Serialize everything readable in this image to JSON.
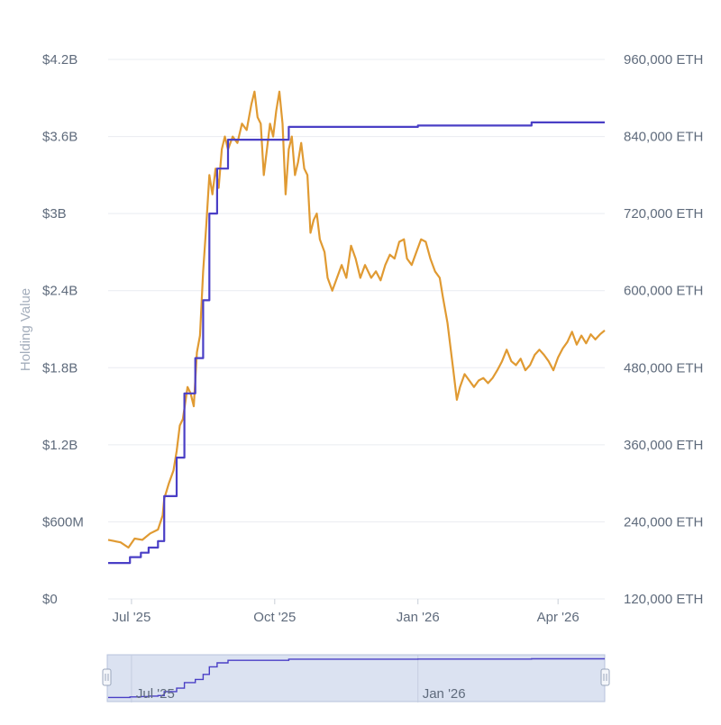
{
  "chart_data": {
    "type": "line",
    "ylabel": "Holding Value",
    "y_left_ticks": [
      "$0",
      "$600M",
      "$1.2B",
      "$1.8B",
      "$2.4B",
      "$3B",
      "$3.6B",
      "$4.2B"
    ],
    "y_left_values": [
      0,
      600,
      1200,
      1800,
      2400,
      3000,
      3600,
      4200
    ],
    "y_left_unit": "millions USD",
    "y_right_ticks": [
      "120,000 ETH",
      "240,000 ETH",
      "360,000 ETH",
      "480,000 ETH",
      "600,000 ETH",
      "720,000 ETH",
      "840,000 ETH",
      "960,000 ETH"
    ],
    "y_right_values": [
      120000,
      240000,
      360000,
      480000,
      600000,
      720000,
      840000,
      960000
    ],
    "x_ticks": [
      "Jul '25",
      "Oct '25",
      "Jan '26",
      "Apr '26"
    ],
    "x_tick_dates": [
      "2025-07-01",
      "2025-10-01",
      "2026-01-01",
      "2026-04-01"
    ],
    "x_range": [
      "2025-06-16",
      "2026-05-01"
    ],
    "ylim_left": [
      0,
      4200
    ],
    "ylim_right": [
      120000,
      960000
    ],
    "grid": true,
    "series": [
      {
        "color": "#e09a32",
        "axis": "left",
        "points": [
          [
            "2025-06-16",
            460
          ],
          [
            "2025-06-24",
            440
          ],
          [
            "2025-06-29",
            400
          ],
          [
            "2025-07-03",
            470
          ],
          [
            "2025-07-08",
            460
          ],
          [
            "2025-07-13",
            510
          ],
          [
            "2025-07-18",
            540
          ],
          [
            "2025-07-21",
            650
          ],
          [
            "2025-07-22",
            780
          ],
          [
            "2025-07-25",
            900
          ],
          [
            "2025-07-28",
            1000
          ],
          [
            "2025-07-30",
            1150
          ],
          [
            "2025-08-01",
            1350
          ],
          [
            "2025-08-03",
            1400
          ],
          [
            "2025-08-06",
            1650
          ],
          [
            "2025-08-08",
            1600
          ],
          [
            "2025-08-10",
            1500
          ],
          [
            "2025-08-12",
            1920
          ],
          [
            "2025-08-14",
            2050
          ],
          [
            "2025-08-16",
            2550
          ],
          [
            "2025-08-18",
            2900
          ],
          [
            "2025-08-20",
            3300
          ],
          [
            "2025-08-22",
            3150
          ],
          [
            "2025-08-24",
            3350
          ],
          [
            "2025-08-26",
            3200
          ],
          [
            "2025-08-28",
            3500
          ],
          [
            "2025-08-30",
            3600
          ],
          [
            "2025-09-01",
            3500
          ],
          [
            "2025-09-04",
            3600
          ],
          [
            "2025-09-07",
            3550
          ],
          [
            "2025-09-10",
            3700
          ],
          [
            "2025-09-13",
            3650
          ],
          [
            "2025-09-16",
            3850
          ],
          [
            "2025-09-18",
            3950
          ],
          [
            "2025-09-20",
            3750
          ],
          [
            "2025-09-22",
            3700
          ],
          [
            "2025-09-24",
            3300
          ],
          [
            "2025-09-26",
            3500
          ],
          [
            "2025-09-28",
            3700
          ],
          [
            "2025-09-30",
            3600
          ],
          [
            "2025-10-02",
            3800
          ],
          [
            "2025-10-04",
            3950
          ],
          [
            "2025-10-06",
            3700
          ],
          [
            "2025-10-08",
            3150
          ],
          [
            "2025-10-10",
            3500
          ],
          [
            "2025-10-12",
            3600
          ],
          [
            "2025-10-14",
            3300
          ],
          [
            "2025-10-16",
            3400
          ],
          [
            "2025-10-18",
            3550
          ],
          [
            "2025-10-20",
            3350
          ],
          [
            "2025-10-22",
            3300
          ],
          [
            "2025-10-24",
            2850
          ],
          [
            "2025-10-26",
            2950
          ],
          [
            "2025-10-28",
            3000
          ],
          [
            "2025-10-30",
            2800
          ],
          [
            "2025-11-02",
            2700
          ],
          [
            "2025-11-04",
            2500
          ],
          [
            "2025-11-07",
            2400
          ],
          [
            "2025-11-10",
            2500
          ],
          [
            "2025-11-13",
            2600
          ],
          [
            "2025-11-16",
            2500
          ],
          [
            "2025-11-19",
            2750
          ],
          [
            "2025-11-22",
            2650
          ],
          [
            "2025-11-25",
            2500
          ],
          [
            "2025-11-28",
            2600
          ],
          [
            "2025-12-02",
            2500
          ],
          [
            "2025-12-05",
            2550
          ],
          [
            "2025-12-08",
            2480
          ],
          [
            "2025-12-11",
            2600
          ],
          [
            "2025-12-14",
            2680
          ],
          [
            "2025-12-17",
            2650
          ],
          [
            "2025-12-20",
            2780
          ],
          [
            "2025-12-23",
            2800
          ],
          [
            "2025-12-25",
            2650
          ],
          [
            "2025-12-28",
            2600
          ],
          [
            "2025-12-31",
            2700
          ],
          [
            "2026-01-03",
            2800
          ],
          [
            "2026-01-06",
            2780
          ],
          [
            "2026-01-09",
            2650
          ],
          [
            "2026-01-12",
            2550
          ],
          [
            "2026-01-15",
            2500
          ],
          [
            "2026-01-17",
            2350
          ],
          [
            "2026-01-20",
            2150
          ],
          [
            "2026-01-22",
            1950
          ],
          [
            "2026-01-24",
            1750
          ],
          [
            "2026-01-26",
            1550
          ],
          [
            "2026-01-28",
            1650
          ],
          [
            "2026-01-31",
            1750
          ],
          [
            "2026-02-03",
            1700
          ],
          [
            "2026-02-06",
            1650
          ],
          [
            "2026-02-09",
            1700
          ],
          [
            "2026-02-12",
            1720
          ],
          [
            "2026-02-15",
            1680
          ],
          [
            "2026-02-18",
            1720
          ],
          [
            "2026-02-21",
            1780
          ],
          [
            "2026-02-24",
            1850
          ],
          [
            "2026-02-27",
            1940
          ],
          [
            "2026-03-02",
            1850
          ],
          [
            "2026-03-05",
            1820
          ],
          [
            "2026-03-08",
            1870
          ],
          [
            "2026-03-11",
            1780
          ],
          [
            "2026-03-14",
            1820
          ],
          [
            "2026-03-17",
            1900
          ],
          [
            "2026-03-20",
            1940
          ],
          [
            "2026-03-23",
            1900
          ],
          [
            "2026-03-26",
            1850
          ],
          [
            "2026-03-29",
            1780
          ],
          [
            "2026-04-01",
            1880
          ],
          [
            "2026-04-04",
            1950
          ],
          [
            "2026-04-07",
            2000
          ],
          [
            "2026-04-10",
            2080
          ],
          [
            "2026-04-13",
            1980
          ],
          [
            "2026-04-16",
            2050
          ],
          [
            "2026-04-19",
            1990
          ],
          [
            "2026-04-22",
            2060
          ],
          [
            "2026-04-25",
            2020
          ],
          [
            "2026-04-28",
            2060
          ],
          [
            "2026-05-01",
            2090
          ]
        ]
      },
      {
        "color": "#4a3fc6",
        "axis": "right",
        "points": [
          [
            "2025-06-16",
            176000
          ],
          [
            "2025-06-30",
            176000
          ],
          [
            "2025-06-30",
            185000
          ],
          [
            "2025-07-07",
            185000
          ],
          [
            "2025-07-07",
            192000
          ],
          [
            "2025-07-12",
            192000
          ],
          [
            "2025-07-12",
            200000
          ],
          [
            "2025-07-18",
            200000
          ],
          [
            "2025-07-18",
            210000
          ],
          [
            "2025-07-22",
            210000
          ],
          [
            "2025-07-22",
            280000
          ],
          [
            "2025-07-30",
            280000
          ],
          [
            "2025-07-30",
            340000
          ],
          [
            "2025-08-04",
            340000
          ],
          [
            "2025-08-04",
            440000
          ],
          [
            "2025-08-11",
            440000
          ],
          [
            "2025-08-11",
            495000
          ],
          [
            "2025-08-16",
            495000
          ],
          [
            "2025-08-16",
            585000
          ],
          [
            "2025-08-20",
            585000
          ],
          [
            "2025-08-20",
            720000
          ],
          [
            "2025-08-25",
            720000
          ],
          [
            "2025-08-25",
            790000
          ],
          [
            "2025-09-01",
            790000
          ],
          [
            "2025-09-01",
            835000
          ],
          [
            "2025-10-10",
            835000
          ],
          [
            "2025-10-10",
            855000
          ],
          [
            "2026-01-01",
            855000
          ],
          [
            "2026-01-01",
            857000
          ],
          [
            "2026-03-15",
            857000
          ],
          [
            "2026-03-15",
            862000
          ],
          [
            "2026-05-01",
            862000
          ]
        ]
      }
    ],
    "navigator": {
      "x_ticks": [
        "Jul '25",
        "Jan '26"
      ],
      "x_tick_dates": [
        "2025-07-01",
        "2026-01-01"
      ]
    }
  }
}
